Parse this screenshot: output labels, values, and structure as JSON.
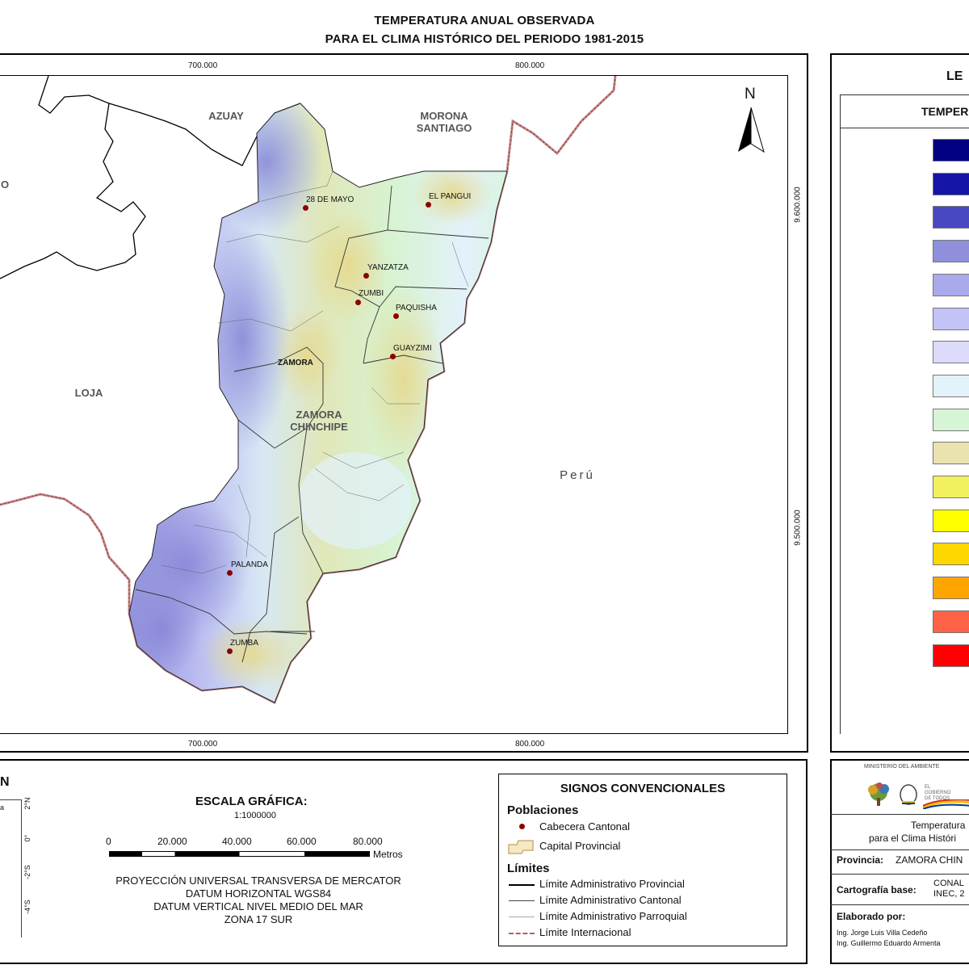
{
  "title": {
    "line1": "TEMPERATURA ANUAL OBSERVADA",
    "line2": "PARA EL CLIMA HISTÓRICO DEL PERIODO 1981-2015"
  },
  "map": {
    "coords_top": [
      "700.000",
      "800.000"
    ],
    "coords_bottom": [
      "700.000",
      "800.000"
    ],
    "coords_right": [
      "9.600.000",
      "9.500.000"
    ],
    "north": "N",
    "regions": {
      "azuay": "AZUAY",
      "morona": "MORONA\nSANTIAGO",
      "loja": "LOJA",
      "zamora_chinchipe": "ZAMORA\nCHINCHIPE",
      "peru": "Perú",
      "left_cut": "O"
    },
    "towns": [
      {
        "name": "28 DE MAYO"
      },
      {
        "name": "EL PANGUI"
      },
      {
        "name": "YANZATZA"
      },
      {
        "name": "ZUMBI"
      },
      {
        "name": "PAQUISHA"
      },
      {
        "name": "GUAYZIMI"
      },
      {
        "name": "ZAMORA"
      },
      {
        "name": "PALANDA"
      },
      {
        "name": "ZUMBA"
      }
    ]
  },
  "legend": {
    "title": "LE",
    "subtitle": "TEMPER",
    "colors": [
      "#000080",
      "#1515a8",
      "#4848c0",
      "#8f8fdc",
      "#a9a9ec",
      "#c3c3f7",
      "#dcdcfa",
      "#e3f3fb",
      "#d6f5d6",
      "#eae3b0",
      "#f3f060",
      "#ffff00",
      "#ffd700",
      "#ffa500",
      "#ff6347",
      "#ff0000"
    ]
  },
  "locator": {
    "title": "N",
    "lat_labels": [
      "2°N",
      "0°",
      "-2°S",
      "-4°S"
    ],
    "side_text": "a"
  },
  "scale": {
    "title": "ESCALA GRÁFICA:",
    "ratio": "1:1000000",
    "ticks": [
      "0",
      "20.000",
      "40.000",
      "60.000",
      "80.000"
    ],
    "unit": "Metros",
    "projection": "PROYECCIÓN UNIVERSAL TRANSVERSA DE MERCATOR",
    "datum_h": "DATUM HORIZONTAL WGS84",
    "datum_v": "DATUM VERTICAL NIVEL MEDIO DEL MAR",
    "zone": "ZONA 17 SUR"
  },
  "signos": {
    "title": "SIGNOS CONVENCIONALES",
    "poblaciones": "Poblaciones",
    "cabecera": "Cabecera Cantonal",
    "capital": "Capital Provincial",
    "limites": "Límites",
    "provincial": "Límite Administrativo Provincial",
    "cantonal": "Límite Administrativo Cantonal",
    "parroquial": "Límite Administrativo Parroquial",
    "internacional": "Límite Internacional"
  },
  "info": {
    "ministry": "MINISTERIO DEL AMBIENTE",
    "gob1": "EL",
    "gob2": "GOBIERNO",
    "gob3": "DE TODOS",
    "map_title1": "Temperatura",
    "map_title2": "para el Clima Históri",
    "provincia_label": "Provincia:",
    "provincia_value": "ZAMORA CHIN",
    "cartografia_label": "Cartografía base:",
    "cartografia_value1": "CONAL",
    "cartografia_value2": "INEC, 2",
    "elaborado_label": "Elaborado por:",
    "author1": "Ing. Jorge Luis Villa Cedeño",
    "author2": "Ing. Guillermo Eduardo Armenta"
  }
}
